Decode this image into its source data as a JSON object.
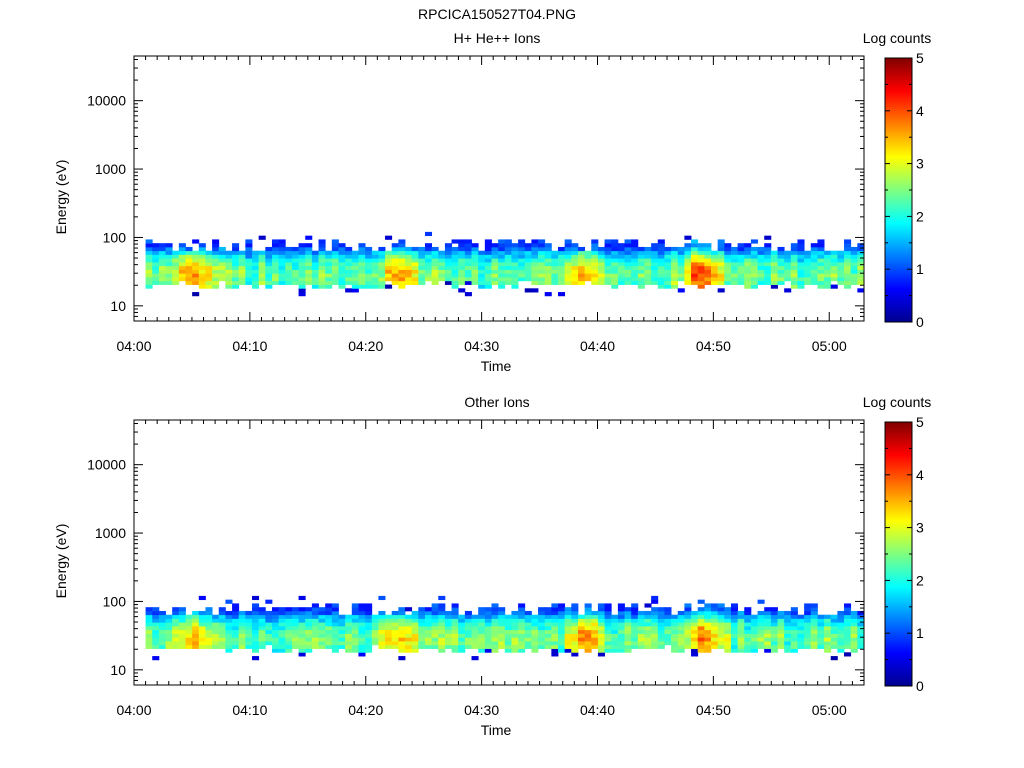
{
  "figure_title": "RPCICA150527T04.PNG",
  "colorbar_colors": [
    "#00008f",
    "#0000ff",
    "#007fff",
    "#00ffff",
    "#7fff7f",
    "#ffff00",
    "#ff7f00",
    "#ff0000",
    "#800000"
  ],
  "chart_data": [
    {
      "type": "heatmap",
      "title": "H+ He++ Ions",
      "xlabel": "Time",
      "ylabel": "Energy (eV)",
      "yscale": "log",
      "ylim": [
        6,
        45000
      ],
      "xlim": [
        "04:00",
        "05:03"
      ],
      "xticks": [
        "04:00",
        "04:10",
        "04:20",
        "04:30",
        "04:40",
        "04:50",
        "05:00"
      ],
      "yticks": [
        "10",
        "100",
        "1000",
        "10000"
      ],
      "colorbar": {
        "label": "Log counts",
        "min": 0,
        "max": 5,
        "ticks": [
          "0",
          "1",
          "2",
          "3",
          "4",
          "5"
        ]
      },
      "data_start": "04:01",
      "data_end": "05:03",
      "energy_band_ev": [
        18,
        95
      ],
      "peak_log_counts": [
        {
          "time": "04:05",
          "value": 3.8
        },
        {
          "time": "04:23",
          "value": 3.8
        },
        {
          "time": "04:39",
          "value": 3.8
        },
        {
          "time": "04:49",
          "value": 4.1
        }
      ]
    },
    {
      "type": "heatmap",
      "title": "Other Ions",
      "xlabel": "Time",
      "ylabel": "Energy (eV)",
      "yscale": "log",
      "ylim": [
        6,
        45000
      ],
      "xlim": [
        "04:00",
        "05:03"
      ],
      "xticks": [
        "04:00",
        "04:10",
        "04:20",
        "04:30",
        "04:40",
        "04:50",
        "05:00"
      ],
      "yticks": [
        "10",
        "100",
        "1000",
        "10000"
      ],
      "colorbar": {
        "label": "Log counts",
        "min": 0,
        "max": 5,
        "ticks": [
          "0",
          "1",
          "2",
          "3",
          "4",
          "5"
        ]
      },
      "data_start": "04:01",
      "data_end": "05:03",
      "energy_band_ev": [
        18,
        95
      ],
      "peak_log_counts": [
        {
          "time": "04:05",
          "value": 3.6
        },
        {
          "time": "04:23",
          "value": 3.7
        },
        {
          "time": "04:39",
          "value": 3.7
        },
        {
          "time": "04:49",
          "value": 3.9
        }
      ]
    }
  ]
}
